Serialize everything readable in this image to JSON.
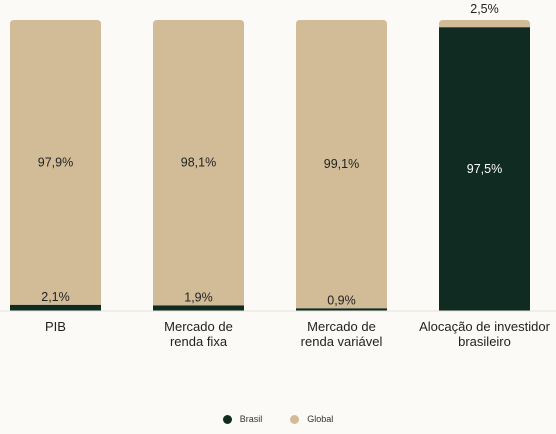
{
  "chart_data": {
    "type": "bar",
    "stacked": true,
    "categories": [
      [
        "PIB"
      ],
      [
        "Mercado de",
        "renda fixa"
      ],
      [
        "Mercado de",
        "renda variável"
      ],
      [
        "Alocação de investidor",
        "brasileiro"
      ]
    ],
    "series": [
      {
        "name": "Brasil",
        "color": "#0f2b22",
        "values": [
          2.1,
          1.9,
          0.9,
          97.5
        ],
        "labels": [
          "2,1%",
          "1,9%",
          "0,9%",
          "97,5%"
        ]
      },
      {
        "name": "Global",
        "color": "#d2bc98",
        "values": [
          97.9,
          98.1,
          99.1,
          2.5
        ],
        "labels": [
          "97,9%",
          "98,1%",
          "99,1%",
          "2,5%"
        ]
      }
    ],
    "ylim": [
      0,
      100
    ],
    "grid": false,
    "legend_position": "bottom"
  }
}
